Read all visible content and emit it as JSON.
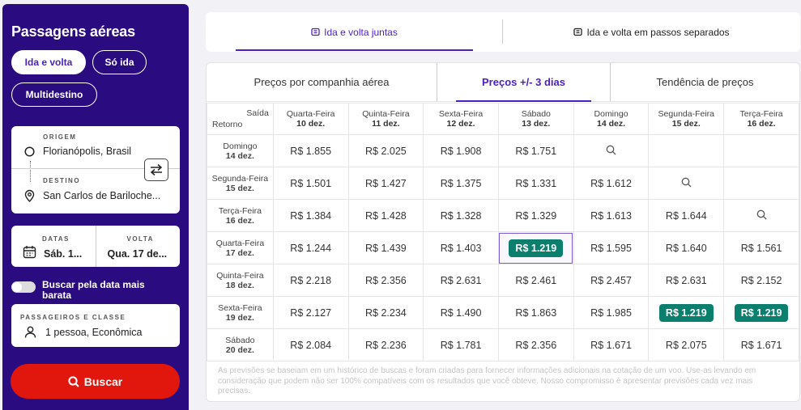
{
  "sidebar": {
    "title": "Passagens aéreas",
    "trip_types": [
      "Ida e volta",
      "Só ida",
      "Multidestino"
    ],
    "origin_label": "ORIGEM",
    "origin_value": "Florianópolis, Brasil",
    "destination_label": "DESTINO",
    "destination_value": "San Carlos de Bariloche...",
    "dates_label": "DATAS",
    "dates_value": "Sáb. 1...",
    "return_label": "VOLTA",
    "return_value": "Qua. 17 de...",
    "cheapest_toggle_label": "Buscar pela data mais barata",
    "passengers_label": "PASSAGEIROS E CLASSE",
    "passengers_value": "1 pessoa, Econômica",
    "search_button": "Buscar"
  },
  "top_tabs": [
    "Ida e volta juntas",
    "Ida e volta em passos separados"
  ],
  "sub_tabs": [
    "Preços por companhia aérea",
    "Preços +/- 3 dias",
    "Tendência de preços"
  ],
  "grid": {
    "corner_top": "Saída",
    "corner_bottom": "Retorno",
    "columns": [
      {
        "day": "Quarta-Feira",
        "date": "10 dez."
      },
      {
        "day": "Quinta-Feira",
        "date": "11 dez."
      },
      {
        "day": "Sexta-Feira",
        "date": "12 dez."
      },
      {
        "day": "Sábado",
        "date": "13 dez."
      },
      {
        "day": "Domingo",
        "date": "14 dez."
      },
      {
        "day": "Segunda-Feira",
        "date": "15 dez."
      },
      {
        "day": "Terça-Feira",
        "date": "16 dez."
      }
    ],
    "rows": [
      {
        "day": "Domingo",
        "date": "14 dez.",
        "cells": [
          "R$ 1.855",
          "R$ 2.025",
          "R$ 1.908",
          "R$ 1.751",
          "search",
          "",
          ""
        ]
      },
      {
        "day": "Segunda-Feira",
        "date": "15 dez.",
        "cells": [
          "R$ 1.501",
          "R$ 1.427",
          "R$ 1.375",
          "R$ 1.331",
          "R$ 1.612",
          "search",
          ""
        ]
      },
      {
        "day": "Terça-Feira",
        "date": "16 dez.",
        "cells": [
          "R$ 1.384",
          "R$ 1.428",
          "R$ 1.328",
          "R$ 1.329",
          "R$ 1.613",
          "R$ 1.644",
          "search"
        ]
      },
      {
        "day": "Quarta-Feira",
        "date": "17 dez.",
        "cells": [
          "R$ 1.244",
          "R$ 1.439",
          "R$ 1.403",
          "R$ 1.219",
          "R$ 1.595",
          "R$ 1.640",
          "R$ 1.561"
        ]
      },
      {
        "day": "Quinta-Feira",
        "date": "18 dez.",
        "cells": [
          "R$ 2.218",
          "R$ 2.356",
          "R$ 2.631",
          "R$ 2.461",
          "R$ 2.457",
          "R$ 2.631",
          "R$ 2.152"
        ]
      },
      {
        "day": "Sexta-Feira",
        "date": "19 dez.",
        "cells": [
          "R$ 2.127",
          "R$ 2.234",
          "R$ 1.490",
          "R$ 1.863",
          "R$ 1.985",
          "R$ 1.219",
          "R$ 1.219"
        ]
      },
      {
        "day": "Sábado",
        "date": "20 dez.",
        "cells": [
          "R$ 2.084",
          "R$ 2.236",
          "R$ 1.781",
          "R$ 2.356",
          "R$ 1.671",
          "R$ 2.075",
          "R$ 1.671"
        ]
      }
    ],
    "highlighted": [
      [
        3,
        3
      ],
      [
        5,
        5
      ],
      [
        5,
        6
      ]
    ],
    "selected": [
      3,
      3
    ]
  },
  "note": "As previsões se baseiam em um histórico de buscas e foram criadas para fornecer informações adicionais na cotação de um voo. Use-as levando em consideração que podem não ser 100% compatíveis com os resultados que você obteve. Nosso compromisso é apresentar previsões cada vez mais precisas.",
  "colors": {
    "brand": "#2a0c80",
    "accent": "#4a1fc4",
    "search": "#e1160c",
    "best_price": "#0a7f6e"
  }
}
